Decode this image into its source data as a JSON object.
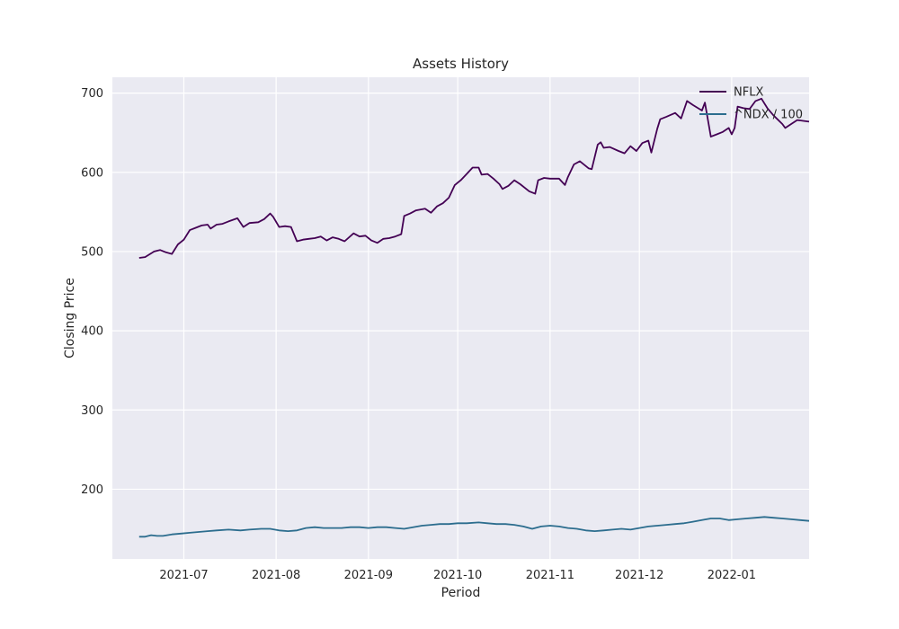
{
  "chart_data": {
    "type": "line",
    "title": "Assets History",
    "xlabel": "Period",
    "ylabel": "Closing Price",
    "xlim": [
      "2021-06-07",
      "2022-01-27"
    ],
    "ylim": [
      112,
      720
    ],
    "x_ticks": [
      {
        "date": "2021-07-01",
        "label": "2021-07"
      },
      {
        "date": "2021-08-01",
        "label": "2021-08"
      },
      {
        "date": "2021-09-01",
        "label": "2021-09"
      },
      {
        "date": "2021-10-01",
        "label": "2021-10"
      },
      {
        "date": "2021-11-01",
        "label": "2021-11"
      },
      {
        "date": "2021-12-01",
        "label": "2021-12"
      },
      {
        "date": "2022-01-01",
        "label": "2022-01"
      }
    ],
    "y_ticks": [
      200,
      300,
      400,
      500,
      600,
      700
    ],
    "grid": true,
    "legend_position": "top-right",
    "series": [
      {
        "name": "NFLX",
        "color": "#440154",
        "points": [
          [
            "2021-06-16",
            492
          ],
          [
            "2021-06-18",
            493
          ],
          [
            "2021-06-21",
            500
          ],
          [
            "2021-06-23",
            502
          ],
          [
            "2021-06-25",
            499
          ],
          [
            "2021-06-27",
            497
          ],
          [
            "2021-06-29",
            509
          ],
          [
            "2021-07-01",
            515
          ],
          [
            "2021-07-03",
            527
          ],
          [
            "2021-07-05",
            530
          ],
          [
            "2021-07-07",
            533
          ],
          [
            "2021-07-09",
            534
          ],
          [
            "2021-07-10",
            529
          ],
          [
            "2021-07-12",
            534
          ],
          [
            "2021-07-14",
            535
          ],
          [
            "2021-07-16",
            538
          ],
          [
            "2021-07-19",
            542
          ],
          [
            "2021-07-21",
            531
          ],
          [
            "2021-07-23",
            536
          ],
          [
            "2021-07-26",
            537
          ],
          [
            "2021-07-28",
            541
          ],
          [
            "2021-07-30",
            548
          ],
          [
            "2021-07-31",
            544
          ],
          [
            "2021-08-02",
            531
          ],
          [
            "2021-08-04",
            532
          ],
          [
            "2021-08-06",
            531
          ],
          [
            "2021-08-08",
            513
          ],
          [
            "2021-08-10",
            515
          ],
          [
            "2021-08-12",
            516
          ],
          [
            "2021-08-14",
            517
          ],
          [
            "2021-08-16",
            519
          ],
          [
            "2021-08-18",
            514
          ],
          [
            "2021-08-20",
            518
          ],
          [
            "2021-08-22",
            516
          ],
          [
            "2021-08-24",
            513
          ],
          [
            "2021-08-27",
            523
          ],
          [
            "2021-08-29",
            519
          ],
          [
            "2021-08-31",
            520
          ],
          [
            "2021-09-02",
            514
          ],
          [
            "2021-09-04",
            511
          ],
          [
            "2021-09-06",
            516
          ],
          [
            "2021-09-08",
            517
          ],
          [
            "2021-09-10",
            519
          ],
          [
            "2021-09-12",
            522
          ],
          [
            "2021-09-13",
            545
          ],
          [
            "2021-09-15",
            548
          ],
          [
            "2021-09-17",
            552
          ],
          [
            "2021-09-20",
            554
          ],
          [
            "2021-09-22",
            549
          ],
          [
            "2021-09-24",
            557
          ],
          [
            "2021-09-26",
            561
          ],
          [
            "2021-09-28",
            568
          ],
          [
            "2021-09-30",
            584
          ],
          [
            "2021-10-02",
            590
          ],
          [
            "2021-10-04",
            598
          ],
          [
            "2021-10-06",
            606
          ],
          [
            "2021-10-08",
            606
          ],
          [
            "2021-10-09",
            597
          ],
          [
            "2021-10-11",
            598
          ],
          [
            "2021-10-13",
            592
          ],
          [
            "2021-10-15",
            585
          ],
          [
            "2021-10-16",
            579
          ],
          [
            "2021-10-18",
            583
          ],
          [
            "2021-10-20",
            590
          ],
          [
            "2021-10-22",
            585
          ],
          [
            "2021-10-25",
            576
          ],
          [
            "2021-10-27",
            573
          ],
          [
            "2021-10-28",
            590
          ],
          [
            "2021-10-30",
            593
          ],
          [
            "2021-11-01",
            592
          ],
          [
            "2021-11-04",
            592
          ],
          [
            "2021-11-06",
            584
          ],
          [
            "2021-11-07",
            594
          ],
          [
            "2021-11-09",
            610
          ],
          [
            "2021-11-11",
            614
          ],
          [
            "2021-11-14",
            605
          ],
          [
            "2021-11-15",
            604
          ],
          [
            "2021-11-17",
            635
          ],
          [
            "2021-11-18",
            638
          ],
          [
            "2021-11-19",
            631
          ],
          [
            "2021-11-21",
            632
          ],
          [
            "2021-11-24",
            627
          ],
          [
            "2021-11-26",
            624
          ],
          [
            "2021-11-28",
            633
          ],
          [
            "2021-11-30",
            627
          ],
          [
            "2021-12-02",
            637
          ],
          [
            "2021-12-04",
            640
          ],
          [
            "2021-12-05",
            625
          ],
          [
            "2021-12-07",
            655
          ],
          [
            "2021-12-08",
            667
          ],
          [
            "2021-12-10",
            670
          ],
          [
            "2021-12-13",
            675
          ],
          [
            "2021-12-15",
            668
          ],
          [
            "2021-12-17",
            690
          ],
          [
            "2021-12-19",
            685
          ],
          [
            "2021-12-22",
            678
          ],
          [
            "2021-12-23",
            688
          ],
          [
            "2021-12-25",
            645
          ],
          [
            "2021-12-27",
            648
          ],
          [
            "2021-12-29",
            651
          ],
          [
            "2021-12-31",
            656
          ],
          [
            "2022-01-01",
            648
          ],
          [
            "2022-01-02",
            656
          ],
          [
            "2022-01-03",
            683
          ],
          [
            "2022-01-05",
            681
          ],
          [
            "2022-01-07",
            680
          ],
          [
            "2022-01-09",
            690
          ],
          [
            "2022-01-11",
            693
          ],
          [
            "2022-01-13",
            681
          ],
          [
            "2022-01-15",
            672
          ],
          [
            "2022-01-18",
            661
          ],
          [
            "2022-01-19",
            656
          ],
          [
            "2022-01-21",
            661
          ],
          [
            "2022-01-23",
            666
          ],
          [
            "2022-01-25",
            665
          ],
          [
            "2022-01-27",
            664
          ]
        ]
      },
      {
        "name": "^NDX / 100",
        "color": "#2c6d8e",
        "points": [
          [
            "2021-06-16",
            140
          ],
          [
            "2021-06-18",
            140
          ],
          [
            "2021-06-20",
            142
          ],
          [
            "2021-06-22",
            141
          ],
          [
            "2021-06-24",
            141
          ],
          [
            "2021-06-27",
            143
          ],
          [
            "2021-06-30",
            144
          ],
          [
            "2021-07-03",
            145
          ],
          [
            "2021-07-06",
            146
          ],
          [
            "2021-07-09",
            147
          ],
          [
            "2021-07-12",
            148
          ],
          [
            "2021-07-16",
            149
          ],
          [
            "2021-07-20",
            148
          ],
          [
            "2021-07-23",
            149
          ],
          [
            "2021-07-27",
            150
          ],
          [
            "2021-07-30",
            150
          ],
          [
            "2021-08-02",
            148
          ],
          [
            "2021-08-05",
            147
          ],
          [
            "2021-08-08",
            148
          ],
          [
            "2021-08-11",
            151
          ],
          [
            "2021-08-14",
            152
          ],
          [
            "2021-08-17",
            151
          ],
          [
            "2021-08-20",
            151
          ],
          [
            "2021-08-23",
            151
          ],
          [
            "2021-08-26",
            152
          ],
          [
            "2021-08-29",
            152
          ],
          [
            "2021-09-01",
            151
          ],
          [
            "2021-09-04",
            152
          ],
          [
            "2021-09-07",
            152
          ],
          [
            "2021-09-10",
            151
          ],
          [
            "2021-09-13",
            150
          ],
          [
            "2021-09-16",
            152
          ],
          [
            "2021-09-19",
            154
          ],
          [
            "2021-09-22",
            155
          ],
          [
            "2021-09-25",
            156
          ],
          [
            "2021-09-28",
            156
          ],
          [
            "2021-10-01",
            157
          ],
          [
            "2021-10-04",
            157
          ],
          [
            "2021-10-08",
            158
          ],
          [
            "2021-10-11",
            157
          ],
          [
            "2021-10-14",
            156
          ],
          [
            "2021-10-17",
            156
          ],
          [
            "2021-10-20",
            155
          ],
          [
            "2021-10-23",
            153
          ],
          [
            "2021-10-26",
            150
          ],
          [
            "2021-10-29",
            153
          ],
          [
            "2021-11-01",
            154
          ],
          [
            "2021-11-04",
            153
          ],
          [
            "2021-11-07",
            151
          ],
          [
            "2021-11-10",
            150
          ],
          [
            "2021-11-13",
            148
          ],
          [
            "2021-11-16",
            147
          ],
          [
            "2021-11-19",
            148
          ],
          [
            "2021-11-22",
            149
          ],
          [
            "2021-11-25",
            150
          ],
          [
            "2021-11-28",
            149
          ],
          [
            "2021-12-01",
            151
          ],
          [
            "2021-12-04",
            153
          ],
          [
            "2021-12-07",
            154
          ],
          [
            "2021-12-10",
            155
          ],
          [
            "2021-12-13",
            156
          ],
          [
            "2021-12-16",
            157
          ],
          [
            "2021-12-19",
            159
          ],
          [
            "2021-12-22",
            161
          ],
          [
            "2021-12-25",
            163
          ],
          [
            "2021-12-28",
            163
          ],
          [
            "2021-12-31",
            161
          ],
          [
            "2022-01-03",
            162
          ],
          [
            "2022-01-06",
            163
          ],
          [
            "2022-01-09",
            164
          ],
          [
            "2022-01-12",
            165
          ],
          [
            "2022-01-15",
            164
          ],
          [
            "2022-01-18",
            163
          ],
          [
            "2022-01-21",
            162
          ],
          [
            "2022-01-24",
            161
          ],
          [
            "2022-01-27",
            160
          ]
        ]
      }
    ]
  }
}
